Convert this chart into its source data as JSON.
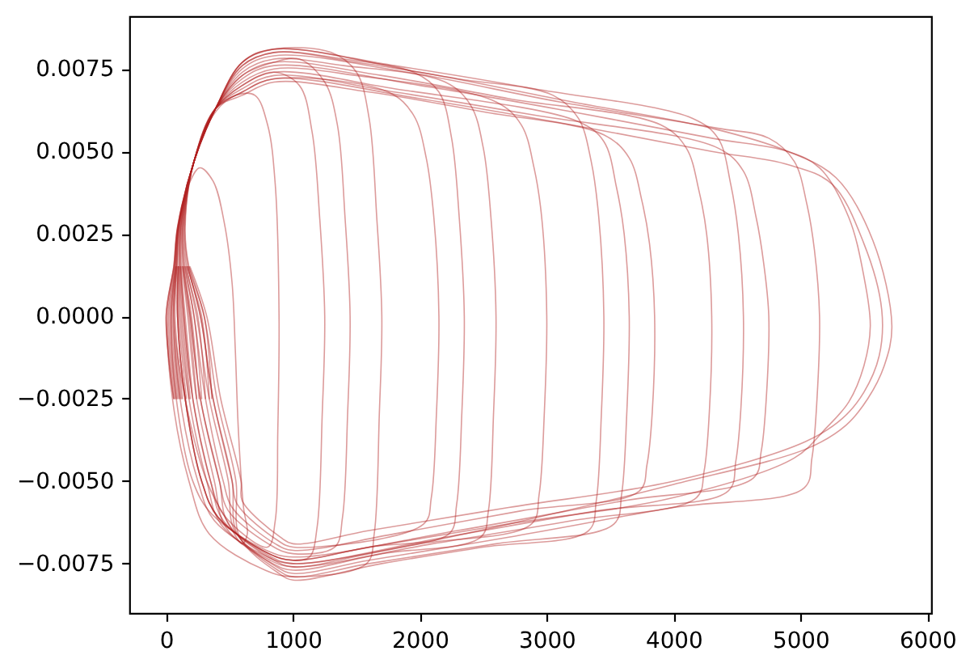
{
  "chart_data": {
    "type": "line",
    "xlim": [
      -290,
      6030
    ],
    "ylim": [
      -0.009,
      0.0091
    ],
    "xticks": [
      0,
      1000,
      2000,
      3000,
      4000,
      5000,
      6000
    ],
    "yticks": [
      {
        "value": -0.0075,
        "label": "−0.0075"
      },
      {
        "value": -0.005,
        "label": "−0.0050"
      },
      {
        "value": -0.0025,
        "label": "−0.0025"
      },
      {
        "value": 0,
        "label": "0.0000"
      },
      {
        "value": 0.0025,
        "label": "0.0025"
      },
      {
        "value": 0.005,
        "label": "0.0050"
      },
      {
        "value": 0.0075,
        "label": "0.0075"
      }
    ],
    "series": [
      {
        "color": "#b22222",
        "x": [
          120,
          60,
          84,
          102,
          180,
          265,
          370,
          460,
          520,
          545,
          570,
          610,
          640,
          600,
          480,
          320,
          150,
          60,
          84
        ],
        "values": [
          -0.0025,
          0,
          0.0015,
          0.0027,
          0.004,
          0.0045,
          0.0041,
          0.0028,
          0.001,
          -0.001,
          -0.0035,
          -0.0058,
          -0.0066,
          -0.0069,
          -0.0062,
          -0.005,
          -0.0025,
          0,
          0.0015
        ]
      },
      {
        "color": "#b22222",
        "x": [
          210,
          150,
          120,
          120,
          220,
          390,
          550,
          700,
          800,
          860,
          890,
          880,
          860,
          800,
          450,
          350,
          210,
          140,
          116
        ],
        "values": [
          -0.0025,
          0,
          0.0015,
          0.0027,
          0.0047,
          0.0062,
          0.0067,
          0.0067,
          0.0058,
          0.004,
          0,
          -0.0035,
          -0.0062,
          -0.007,
          -0.006,
          -0.005,
          -0.0025,
          0,
          0.0015
        ]
      },
      {
        "color": "#b22222",
        "x": [
          160,
          100,
          100,
          110,
          220,
          390,
          600,
          850,
          1050,
          1150,
          1210,
          1250,
          1230,
          1190,
          1130,
          1000,
          810,
          410,
          280,
          150,
          90,
          96
        ],
        "values": [
          -0.0025,
          0,
          0.0015,
          0.0027,
          0.0047,
          0.0063,
          0.007,
          0.0074,
          0.007,
          0.0056,
          0.003,
          0,
          -0.003,
          -0.0064,
          -0.0073,
          -0.0074,
          -0.0072,
          -0.0061,
          -0.005,
          -0.0025,
          0,
          0.0015
        ]
      },
      {
        "color": "#b22222",
        "x": [
          70,
          10,
          64,
          92,
          220,
          390,
          600,
          850,
          1300,
          1500,
          1600,
          1660,
          1700,
          1680,
          1640,
          1580,
          1000,
          780,
          340,
          180,
          50,
          10,
          64
        ],
        "values": [
          -0.0025,
          0,
          0.0015,
          0.0027,
          0.0047,
          0.0063,
          0.0077,
          0.0081,
          0.008,
          0.0074,
          0.006,
          0.003,
          0,
          -0.003,
          -0.0066,
          -0.0075,
          -0.0079,
          -0.0077,
          -0.0066,
          -0.005,
          -0.0025,
          0,
          0.0015
        ]
      },
      {
        "color": "#b22222",
        "x": [
          310,
          250,
          160,
          140,
          220,
          390,
          600,
          850,
          1750,
          1950,
          2050,
          2110,
          2150,
          2130,
          2090,
          2030,
          1000,
          880,
          560,
          520,
          370,
          270,
          168
        ],
        "values": [
          -0.0025,
          0,
          0.0015,
          0.0027,
          0.0047,
          0.0063,
          0.0068,
          0.0072,
          0.0068,
          0.0061,
          0.0048,
          0.003,
          0,
          -0.003,
          -0.0055,
          -0.0063,
          -0.007,
          -0.0068,
          -0.0057,
          -0.005,
          -0.0025,
          0,
          0.0015
        ]
      },
      {
        "color": "#b22222",
        "x": [
          100,
          40,
          76,
          98,
          220,
          390,
          600,
          850,
          1400,
          2200,
          2400,
          2500,
          2560,
          2600,
          2580,
          2540,
          2480,
          1700,
          1000,
          840,
          470,
          380,
          240,
          170,
          128
        ],
        "values": [
          -0.0025,
          0,
          0.0015,
          0.0027,
          0.0047,
          0.0063,
          0.0074,
          0.0078,
          0.0076,
          0.0071,
          0.0064,
          0.0051,
          0.003,
          0,
          -0.003,
          -0.0059,
          -0.0067,
          -0.0072,
          -0.0077,
          -0.0075,
          -0.0064,
          -0.005,
          -0.0025,
          0,
          0.0015
        ]
      },
      {
        "color": "#b22222",
        "x": [
          240,
          180,
          132,
          126,
          220,
          390,
          600,
          850,
          1500,
          2600,
          2800,
          2900,
          2960,
          3000,
          2980,
          2940,
          2880,
          2000,
          1000,
          800,
          380,
          250,
          110,
          60,
          84
        ],
        "values": [
          -0.0025,
          0,
          0.0015,
          0.0027,
          0.0047,
          0.0063,
          0.0071,
          0.0075,
          0.0073,
          0.0065,
          0.0058,
          0.0045,
          0.003,
          0,
          -0.003,
          -0.0054,
          -0.0063,
          -0.0069,
          -0.0075,
          -0.0073,
          -0.0062,
          -0.005,
          -0.0025,
          0,
          0.0015
        ]
      },
      {
        "color": "#b22222",
        "x": [
          60,
          0,
          60,
          90,
          220,
          390,
          600,
          850,
          1500,
          2300,
          3050,
          3250,
          3350,
          3410,
          3450,
          3430,
          3390,
          3330,
          2500,
          1700,
          1000,
          890,
          580,
          550,
          400,
          300,
          180
        ],
        "values": [
          -0.0025,
          0,
          0.0015,
          0.0027,
          0.0047,
          0.0063,
          0.0076,
          0.008,
          0.0077,
          0.0072,
          0.0067,
          0.006,
          0.0047,
          0.003,
          0,
          -0.003,
          -0.0056,
          -0.0065,
          -0.007,
          -0.0075,
          -0.008,
          -0.0078,
          -0.0067,
          -0.005,
          -0.0025,
          0,
          0.0015
        ]
      },
      {
        "color": "#b22222",
        "x": [
          360,
          300,
          180,
          150,
          220,
          390,
          600,
          850,
          1600,
          2500,
          3450,
          3650,
          3750,
          3810,
          3850,
          3830,
          3790,
          3730,
          2800,
          1800,
          1000,
          860,
          520,
          450,
          310,
          220,
          148
        ],
        "values": [
          -0.0025,
          0,
          0.0015,
          0.0027,
          0.0047,
          0.0063,
          0.0067,
          0.0071,
          0.0068,
          0.0062,
          0.0055,
          0.0048,
          0.0035,
          0.0022,
          0,
          -0.003,
          -0.0045,
          -0.0053,
          -0.0059,
          -0.0066,
          -0.0071,
          -0.0069,
          -0.0058,
          -0.005,
          -0.0025,
          0,
          0.0015
        ]
      },
      {
        "color": "#b22222",
        "x": [
          130,
          70,
          88,
          104,
          220,
          390,
          600,
          850,
          1700,
          2700,
          3900,
          4100,
          4200,
          4260,
          4300,
          4280,
          4240,
          4180,
          3200,
          2100,
          1000,
          820,
          430,
          320,
          180,
          110,
          104
        ],
        "values": [
          -0.0025,
          0,
          0.0015,
          0.0027,
          0.0047,
          0.0063,
          0.0073,
          0.0077,
          0.0073,
          0.0066,
          0.0058,
          0.0051,
          0.0038,
          0.0025,
          0,
          -0.003,
          -0.0047,
          -0.0055,
          -0.0062,
          -0.0069,
          -0.0076,
          -0.0074,
          -0.0063,
          -0.005,
          -0.0025,
          0,
          0.0015
        ]
      },
      {
        "color": "#b22222",
        "x": [
          280,
          220,
          148,
          134,
          220,
          390,
          600,
          850,
          1800,
          2900,
          4350,
          4550,
          4650,
          4710,
          4750,
          4730,
          4690,
          4630,
          3600,
          2300,
          1000,
          790,
          360,
          210,
          80,
          40,
          76
        ],
        "values": [
          -0.0025,
          0,
          0.0015,
          0.0027,
          0.0047,
          0.0063,
          0.0069,
          0.0073,
          0.0068,
          0.0061,
          0.0051,
          0.0044,
          0.003,
          0.0016,
          0,
          -0.0025,
          -0.0041,
          -0.0049,
          -0.0056,
          -0.0065,
          -0.0073,
          -0.0071,
          -0.006,
          -0.005,
          -0.0025,
          0,
          0.0015
        ]
      },
      {
        "color": "#b22222",
        "x": [
          80,
          20,
          68,
          94,
          220,
          390,
          600,
          850,
          1900,
          3100,
          4350,
          4750,
          4950,
          5050,
          5110,
          5150,
          5130,
          5090,
          5030,
          4000,
          2700,
          1600,
          1000,
          870,
          540,
          490,
          340,
          240,
          156
        ],
        "values": [
          -0.0025,
          0,
          0.0015,
          0.0027,
          0.0047,
          0.0063,
          0.0075,
          0.0079,
          0.0074,
          0.0065,
          0.0057,
          0.0054,
          0.0047,
          0.0034,
          0.002,
          0,
          -0.0025,
          -0.0043,
          -0.0052,
          -0.0058,
          -0.0067,
          -0.0074,
          -0.0078,
          -0.0076,
          -0.0065,
          -0.005,
          -0.0025,
          0,
          0.0015
        ]
      },
      {
        "color": "#b22222",
        "x": [
          190,
          130,
          112,
          116,
          220,
          390,
          600,
          850,
          2000,
          3200,
          4300,
          4900,
          5150,
          5380,
          5500,
          5550,
          5500,
          5380,
          5200,
          4950,
          4000,
          2700,
          1600,
          1000,
          810,
          410,
          280,
          150,
          90,
          96
        ],
        "values": [
          -0.0025,
          0,
          0.0015,
          0.0027,
          0.0047,
          0.0063,
          0.0072,
          0.0076,
          0.007,
          0.0062,
          0.0054,
          0.005,
          0.0045,
          0.003,
          0.0012,
          -0.0003,
          -0.0015,
          -0.0026,
          -0.0034,
          -0.0043,
          -0.0055,
          -0.0063,
          -0.007,
          -0.0074,
          -0.0072,
          -0.0061,
          -0.005,
          -0.0025,
          0,
          0.0015
        ]
      },
      {
        "color": "#b22222",
        "x": [
          60,
          0,
          60,
          90,
          220,
          390,
          600,
          850,
          2000,
          3200,
          4300,
          4900,
          5280,
          5570,
          5720,
          5660,
          5530,
          5360,
          5060,
          4000,
          2700,
          1600,
          1000,
          850,
          490,
          420,
          270,
          190,
          136
        ],
        "values": [
          -0.0025,
          0,
          0.0015,
          0.0027,
          0.0047,
          0.0063,
          0.0077,
          0.0081,
          0.0074,
          0.0065,
          0.0057,
          0.005,
          0.0042,
          0.0023,
          -0.0003,
          -0.0015,
          -0.0025,
          -0.0033,
          -0.004,
          -0.0051,
          -0.0063,
          -0.0072,
          -0.0076,
          -0.0074,
          -0.0063,
          -0.005,
          -0.0025,
          0,
          0.0015
        ]
      },
      {
        "color": "#b22222",
        "x": [
          340,
          280,
          172,
          146,
          220,
          390,
          600,
          850,
          2000,
          3200,
          4300,
          4900,
          5250,
          5500,
          5640,
          5620,
          5500,
          5330,
          5040,
          4000,
          2700,
          1600,
          1000,
          900,
          600,
          590,
          430,
          320,
          188
        ],
        "values": [
          -0.0025,
          0,
          0.0015,
          0.0027,
          0.0047,
          0.0063,
          0.0068,
          0.0072,
          0.0066,
          0.0058,
          0.005,
          0.0046,
          0.004,
          0.0022,
          0.0002,
          -0.0012,
          -0.0023,
          -0.0031,
          -0.0038,
          -0.005,
          -0.0058,
          -0.0065,
          -0.0069,
          -0.0067,
          -0.0056,
          -0.005,
          -0.0025,
          0,
          0.0015
        ]
      },
      {
        "color": "#b22222",
        "x": [
          260,
          200,
          140,
          130,
          220,
          390,
          600,
          850,
          1050,
          1250,
          1350,
          1410,
          1450,
          1430,
          1390,
          1330,
          1000,
          850,
          490,
          420,
          270,
          190,
          136
        ],
        "values": [
          -0.0025,
          0,
          0.0015,
          0.0027,
          0.0047,
          0.0063,
          0.0073,
          0.0077,
          0.0078,
          0.0071,
          0.0058,
          0.003,
          0,
          -0.003,
          -0.0061,
          -0.007,
          -0.0072,
          -0.007,
          -0.0059,
          -0.005,
          -0.0025,
          0,
          0.0015
        ]
      },
      {
        "color": "#b22222",
        "x": [
          90,
          30,
          72,
          96,
          220,
          390,
          600,
          850,
          1400,
          1950,
          2150,
          2250,
          2310,
          2350,
          2330,
          2290,
          2230,
          1600,
          1000,
          810,
          410,
          280,
          150,
          90,
          96
        ],
        "values": [
          -0.0025,
          0,
          0.0015,
          0.0027,
          0.0047,
          0.0063,
          0.0076,
          0.008,
          0.0078,
          0.0074,
          0.0068,
          0.0054,
          0.003,
          0,
          -0.003,
          -0.0057,
          -0.0066,
          -0.007,
          -0.0074,
          -0.0072,
          -0.0061,
          -0.005,
          -0.0025,
          0,
          0.0015
        ]
      },
      {
        "color": "#b22222",
        "x": [
          180,
          120,
          108,
          114,
          220,
          390,
          600,
          850,
          1800,
          3250,
          3450,
          3550,
          3610,
          3650,
          3630,
          3590,
          3530,
          2600,
          1600,
          1000,
          880,
          560,
          520,
          370,
          270,
          168
        ],
        "values": [
          -0.0025,
          0,
          0.0015,
          0.0027,
          0.0047,
          0.0063,
          0.007,
          0.0074,
          0.0069,
          0.0059,
          0.0053,
          0.0039,
          0.0025,
          0,
          -0.003,
          -0.0054,
          -0.0063,
          -0.0069,
          -0.0075,
          -0.0079,
          -0.0077,
          -0.0066,
          -0.005,
          -0.0025,
          0,
          0.0015
        ]
      },
      {
        "color": "#b22222",
        "x": [
          110,
          50,
          80,
          100,
          220,
          390,
          600,
          850,
          1800,
          2900,
          4150,
          4350,
          4450,
          4510,
          4550,
          4530,
          4490,
          4430,
          3400,
          2200,
          1000,
          830,
          450,
          350,
          210,
          140,
          116
        ],
        "values": [
          -0.0025,
          0,
          0.0015,
          0.0027,
          0.0047,
          0.0063,
          0.0077,
          0.0081,
          0.0076,
          0.0069,
          0.006,
          0.0054,
          0.004,
          0.0025,
          0,
          -0.0028,
          -0.0044,
          -0.0053,
          -0.0059,
          -0.0067,
          -0.0075,
          -0.0073,
          -0.0062,
          -0.005,
          -0.0025,
          0,
          0.0015
        ]
      }
    ]
  }
}
